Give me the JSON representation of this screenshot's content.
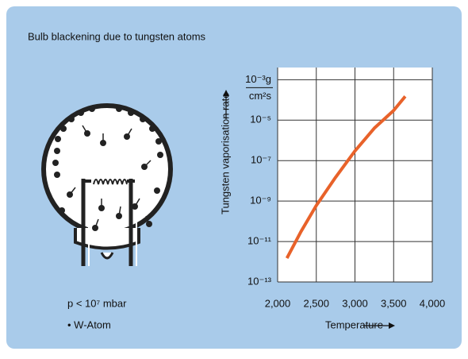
{
  "chart_data": {
    "type": "line",
    "title": "Bulb blackening due to tungsten atoms",
    "x_label": "Temperature",
    "y_label": "Tungsten vaporisation rate",
    "y_unit": "cm²s",
    "notes": [
      "p < 10⁷ mbar",
      "• W-Atom"
    ],
    "x": [
      2120,
      2300,
      2500,
      2750,
      3000,
      3250,
      3500,
      3650
    ],
    "series": [
      {
        "color": "#e8622a",
        "values": [
          1.5e-12,
          3e-11,
          6e-10,
          1.5e-08,
          3e-07,
          4e-06,
          3e-05,
          0.00015
        ]
      }
    ],
    "xlim": [
      2000,
      4000
    ],
    "xticks": [
      {
        "value": 2000,
        "label": "2,000"
      },
      {
        "value": 2500,
        "label": "2,500"
      },
      {
        "value": 3000,
        "label": "3,000"
      },
      {
        "value": 3500,
        "label": "3,500"
      },
      {
        "value": 4000,
        "label": "4,000"
      }
    ],
    "ylim": [
      1e-13,
      0.004
    ],
    "log_y": true,
    "grid": true,
    "yticks": [
      {
        "value": 1e-13,
        "label": "10⁻¹³"
      },
      {
        "value": 1e-11,
        "label": "10⁻¹¹"
      },
      {
        "value": 1e-09,
        "label": "10⁻⁹"
      },
      {
        "value": 1e-07,
        "label": "10⁻⁷"
      },
      {
        "value": 1e-05,
        "label": "10⁻⁵"
      },
      {
        "value": 0.001,
        "label": "10⁻³g"
      }
    ]
  }
}
